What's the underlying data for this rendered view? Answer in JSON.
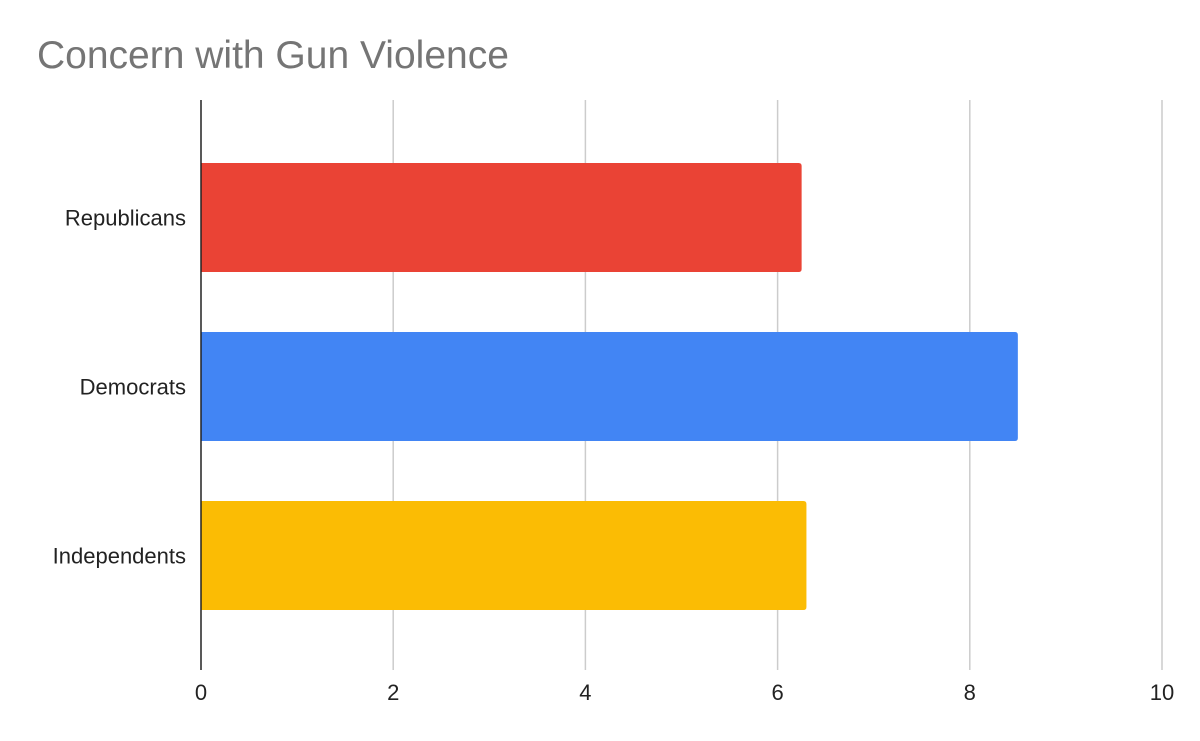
{
  "chart_data": {
    "type": "bar",
    "orientation": "horizontal",
    "title": "Concern with Gun Violence",
    "xlabel": "",
    "ylabel": "",
    "categories": [
      "Republicans",
      "Democrats",
      "Independents"
    ],
    "values": [
      6.25,
      8.5,
      6.3
    ],
    "colors": [
      "#ea4335",
      "#4285f4",
      "#fbbc04"
    ],
    "xlim": [
      0,
      10
    ],
    "xticks": [
      0,
      2,
      4,
      6,
      8,
      10
    ],
    "xtick_labels": [
      "0",
      "2",
      "4",
      "6",
      "8",
      "10"
    ],
    "grid": true,
    "legend": "none"
  }
}
